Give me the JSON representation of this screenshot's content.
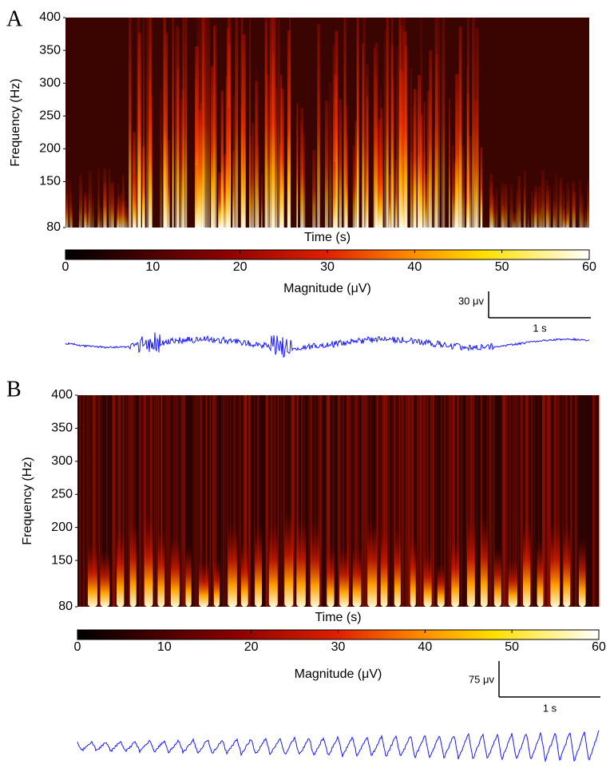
{
  "panels": [
    {
      "label": "A",
      "spectrogram": {
        "type": "heatmap",
        "y_label": "Frequency (Hz)",
        "x_label": "Time (s)",
        "ylim": [
          80,
          400
        ],
        "yticks": [
          80,
          150,
          200,
          250,
          300,
          350,
          400
        ]
      },
      "colorbar": {
        "label": "Magnitude (μV)",
        "lim": [
          0,
          60
        ],
        "ticks": [
          0,
          10,
          20,
          30,
          40,
          50,
          60
        ]
      },
      "scale_bar": {
        "amplitude": "30 μv",
        "time": "1 s"
      }
    },
    {
      "label": "B",
      "spectrogram": {
        "type": "heatmap",
        "y_label": "Frequency (Hz)",
        "x_label": "Time (s)",
        "ylim": [
          80,
          400
        ],
        "yticks": [
          80,
          150,
          200,
          250,
          300,
          350,
          400
        ]
      },
      "colorbar": {
        "label": "Magnitude (μV)",
        "lim": [
          0,
          60
        ],
        "ticks": [
          0,
          10,
          20,
          30,
          40,
          50,
          60
        ]
      },
      "scale_bar": {
        "amplitude": "75 μv",
        "time": "1 s"
      }
    }
  ]
}
